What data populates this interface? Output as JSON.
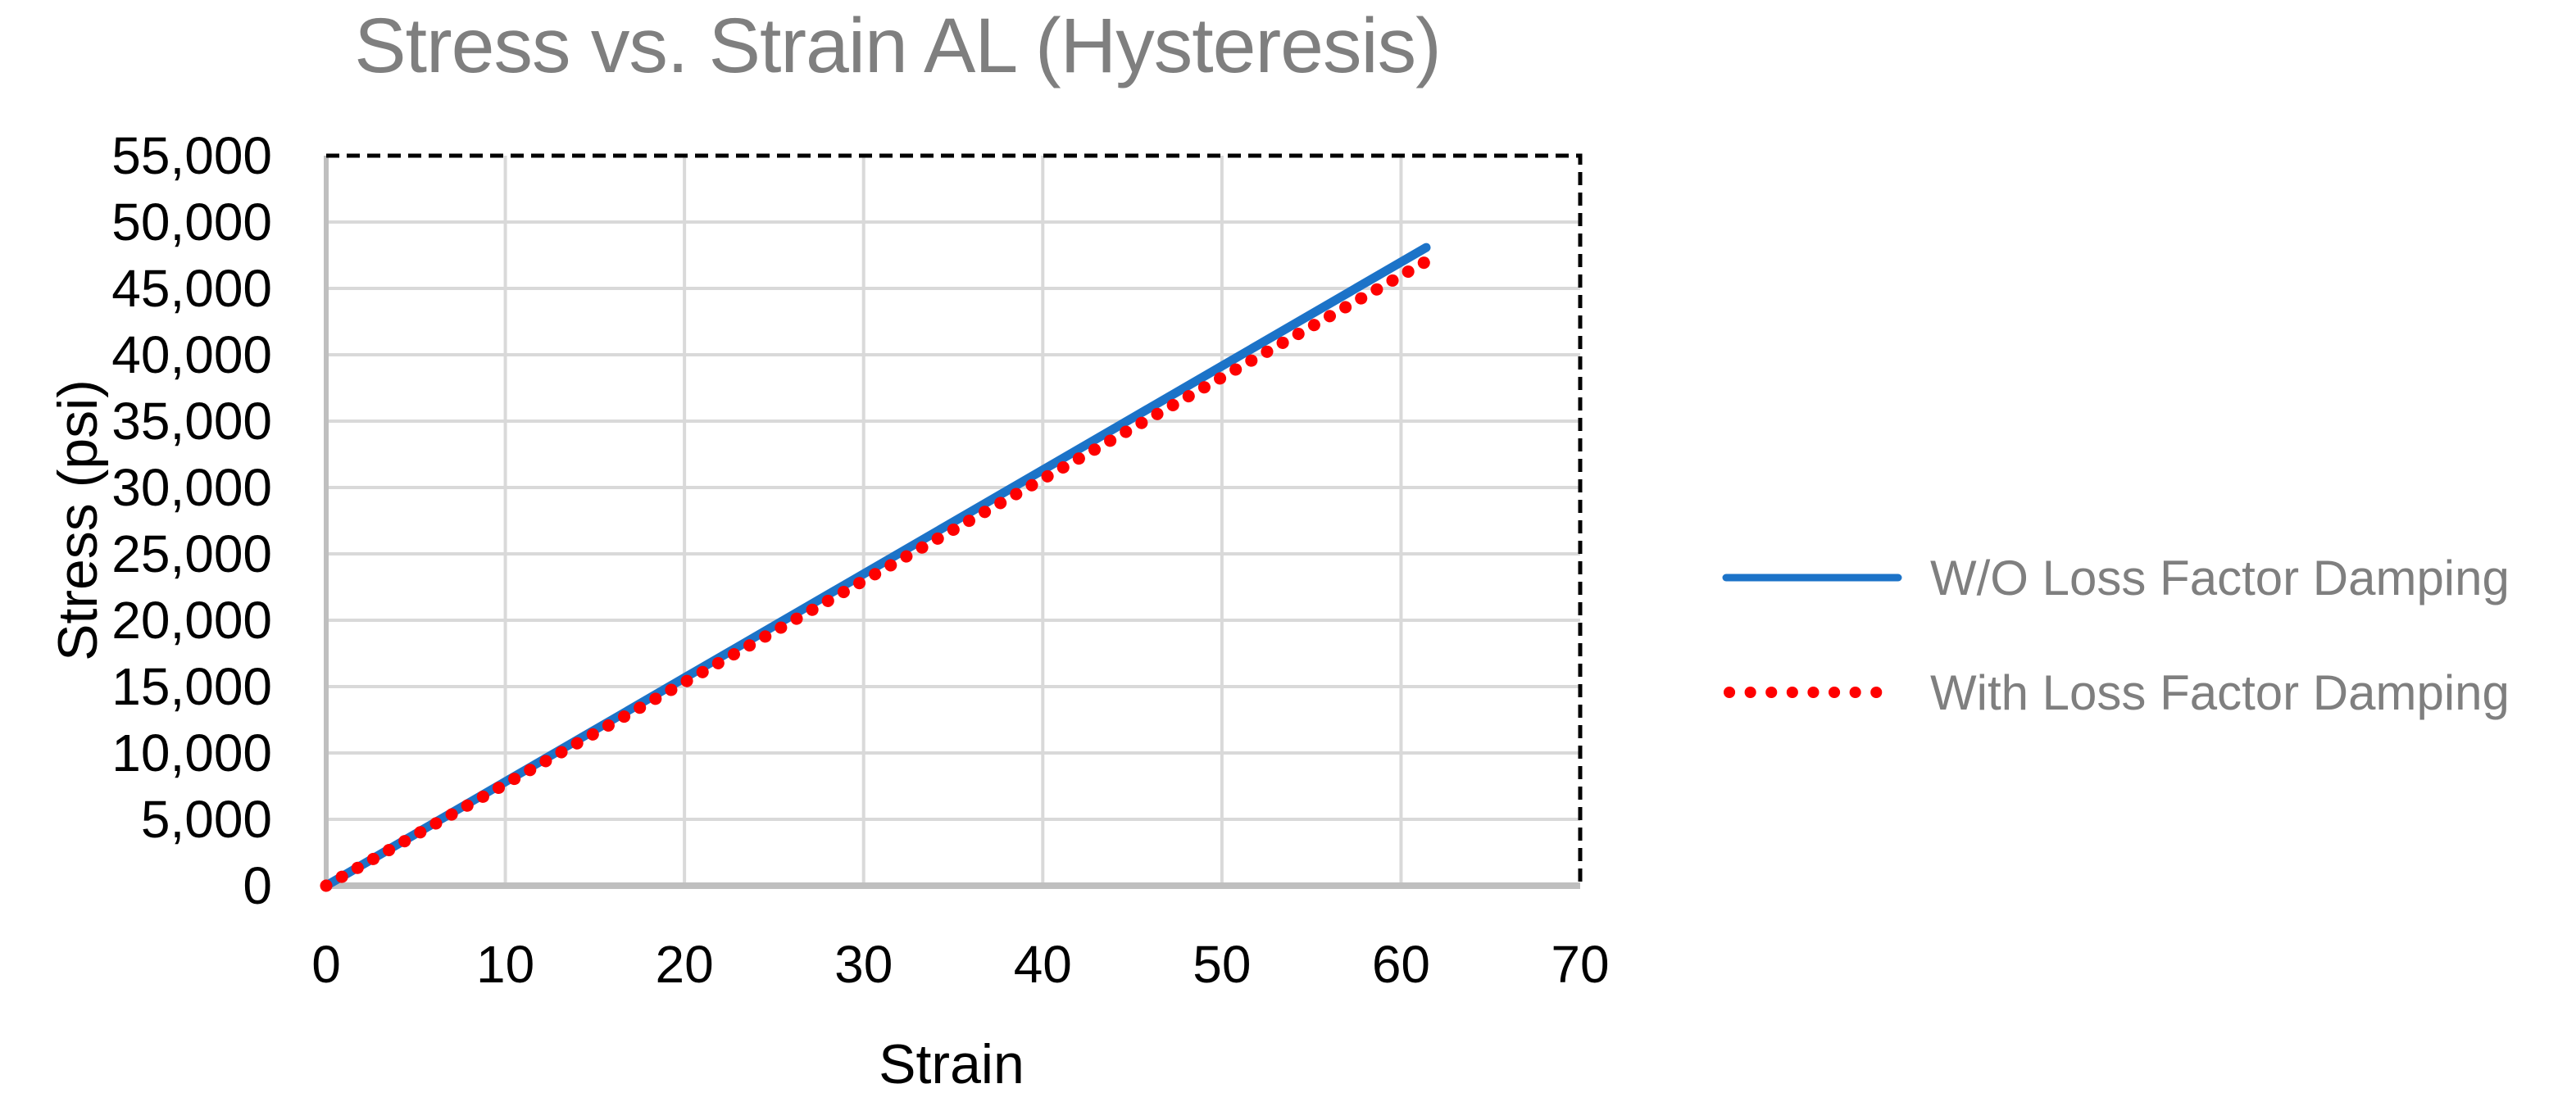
{
  "chart_data": {
    "type": "line",
    "title": "Stress vs. Strain AL (Hysteresis)",
    "xlabel": "Strain",
    "ylabel": "Stress (psi)",
    "grid": true,
    "plot_border_style": "dashed-top-right",
    "legend_position": "right",
    "x_axis": {
      "min": 0,
      "max": 70,
      "tick_step": 10,
      "tick_labels": [
        "0",
        "10",
        "20",
        "30",
        "40",
        "50",
        "60",
        "70"
      ]
    },
    "y_axis": {
      "min": 0,
      "max": 55000,
      "tick_step": 5000,
      "tick_labels": [
        "0",
        "5,000",
        "10,000",
        "15,000",
        "20,000",
        "25,000",
        "30,000",
        "35,000",
        "40,000",
        "45,000",
        "50,000",
        "55,000"
      ]
    },
    "series": [
      {
        "name": "W/O Loss Factor Damping",
        "color": "#1C73C8",
        "line_style": "solid",
        "x": [
          0,
          10,
          20,
          30,
          40,
          50,
          61.4
        ],
        "y": [
          0,
          7830,
          15660,
          23490,
          31320,
          39150,
          48080
        ]
      },
      {
        "name": "With Loss Factor Damping",
        "color": "#FE0000",
        "line_style": "dotted",
        "x": [
          0,
          10,
          20,
          30,
          40,
          50,
          61.7
        ],
        "y": [
          0,
          7660,
          15320,
          22980,
          30640,
          38300,
          47260
        ]
      }
    ],
    "colors": {
      "background": "#FFFFFF",
      "gridline": "#D9D9D9",
      "axis_line": "#BFBFBF",
      "plot_border": "#000000",
      "title_text": "#7F7F7F",
      "legend_text": "#7F7F7F",
      "tick_text": "#000000"
    }
  }
}
